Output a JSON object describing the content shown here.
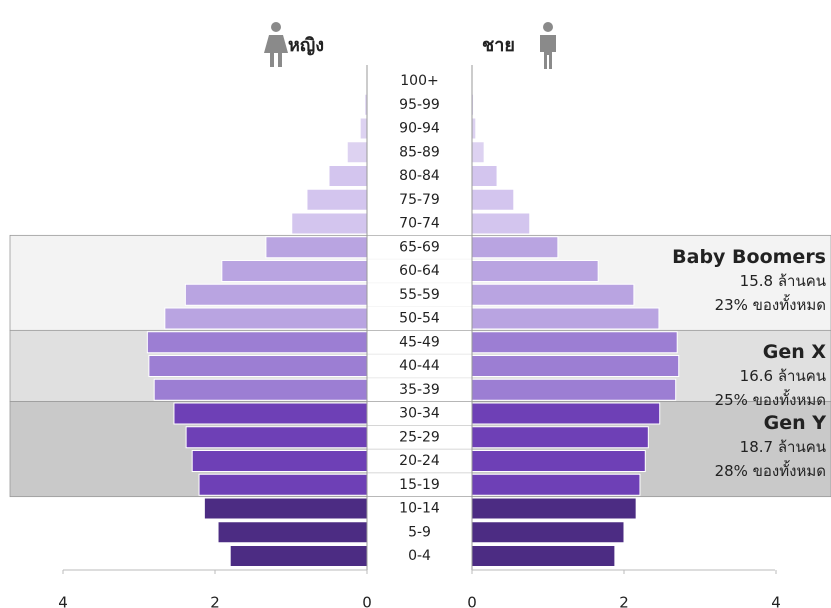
{
  "chart_data": {
    "type": "population_pyramid",
    "categories": [
      "100+",
      "95-99",
      "90-94",
      "85-89",
      "80-84",
      "75-79",
      "70-74",
      "65-69",
      "60-64",
      "55-59",
      "50-54",
      "45-49",
      "40-44",
      "35-39",
      "30-34",
      "25-29",
      "20-24",
      "15-19",
      "10-14",
      "5-9",
      "0-4"
    ],
    "series": [
      {
        "name": "หญิง",
        "values": [
          0.01,
          0.03,
          0.09,
          0.26,
          0.5,
          0.79,
          0.99,
          1.33,
          1.91,
          2.39,
          2.66,
          2.89,
          2.87,
          2.8,
          2.54,
          2.38,
          2.3,
          2.21,
          2.14,
          1.96,
          1.8
        ]
      },
      {
        "name": "ชาย",
        "values": [
          0.01,
          0.02,
          0.05,
          0.16,
          0.33,
          0.55,
          0.76,
          1.13,
          1.66,
          2.13,
          2.46,
          2.7,
          2.72,
          2.68,
          2.47,
          2.32,
          2.28,
          2.21,
          2.16,
          2.0,
          1.88
        ]
      }
    ],
    "colors": [
      "#ddd2f1",
      "#ddd2f1",
      "#ddd2f1",
      "#ddd2f1",
      "#d3c5ee",
      "#d3c5ee",
      "#d3c5ee",
      "#b9a4e1",
      "#b9a4e1",
      "#b9a4e1",
      "#b9a4e1",
      "#9c7ed3",
      "#9c7ed3",
      "#9c7ed3",
      "#6e40b6",
      "#6e40b6",
      "#6e40b6",
      "#6e40b6",
      "#4c2c83",
      "#4c2c83",
      "#4c2c83"
    ],
    "xlim": [
      0,
      4
    ],
    "xticks": [
      0,
      2,
      4
    ],
    "annotations": [
      {
        "title": "Baby Boomers",
        "lines": [
          "15.8 ล้านคน",
          "23% ของทั้งหมด"
        ]
      },
      {
        "title": "Gen X",
        "lines": [
          "16.6 ล้านคน",
          "25% ของทั้งหมด"
        ]
      },
      {
        "title": "Gen Y",
        "lines": [
          "18.7 ล้านคน",
          "28% ของทั้งหมด"
        ]
      }
    ]
  }
}
